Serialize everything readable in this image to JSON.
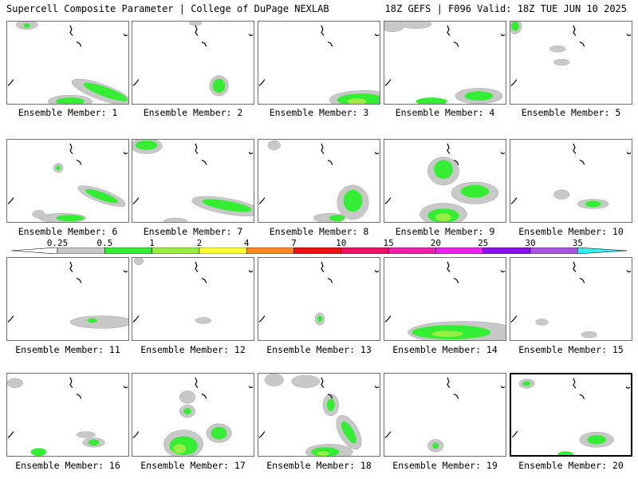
{
  "header": {
    "title": "Supercell Composite Parameter | College of DuPage NEXLAB",
    "run_info": "18Z GEFS | F096 Valid: 18Z TUE JUN 10 2025"
  },
  "legend": {
    "ticks": [
      "0.25",
      "0.5",
      "1",
      "2",
      "4",
      "7",
      "10",
      "15",
      "20",
      "25",
      "30",
      "35"
    ],
    "colors": [
      "#c8c8c8",
      "#33ee33",
      "#99ee44",
      "#ffff33",
      "#ff8822",
      "#ee1111",
      "#ee1166",
      "#ee22aa",
      "#ee22ee",
      "#8811ee",
      "#aa55dd",
      "#33eeee"
    ]
  },
  "members": [
    {
      "label": "Ensemble Member: 1"
    },
    {
      "label": "Ensemble Member: 2"
    },
    {
      "label": "Ensemble Member: 3"
    },
    {
      "label": "Ensemble Member: 4"
    },
    {
      "label": "Ensemble Member: 5"
    },
    {
      "label": "Ensemble Member: 6"
    },
    {
      "label": "Ensemble Member: 7"
    },
    {
      "label": "Ensemble Member: 8"
    },
    {
      "label": "Ensemble Member: 9"
    },
    {
      "label": "Ensemble Member: 10"
    },
    {
      "label": "Ensemble Member: 11"
    },
    {
      "label": "Ensemble Member: 12"
    },
    {
      "label": "Ensemble Member: 13"
    },
    {
      "label": "Ensemble Member: 14"
    },
    {
      "label": "Ensemble Member: 15"
    },
    {
      "label": "Ensemble Member: 16"
    },
    {
      "label": "Ensemble Member: 17"
    },
    {
      "label": "Ensemble Member: 18"
    },
    {
      "label": "Ensemble Member: 19"
    },
    {
      "label": "Ensemble Member: 20",
      "selected": true
    }
  ]
}
